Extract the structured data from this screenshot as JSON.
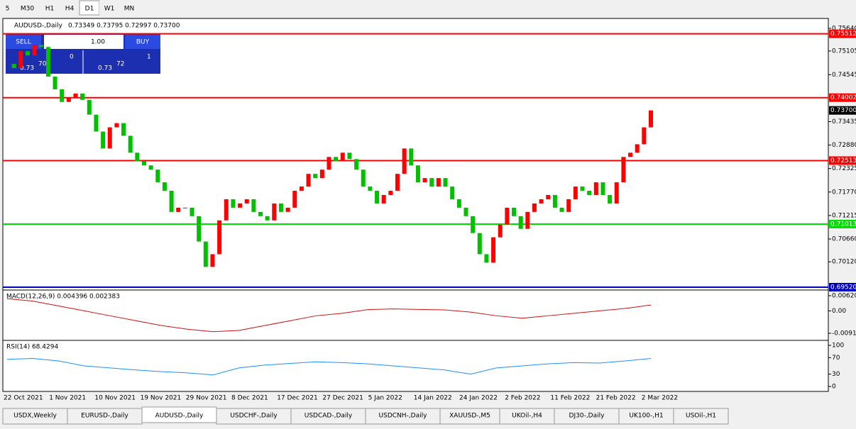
{
  "toolbar": {
    "timeframes": [
      "5",
      "M30",
      "H1",
      "H4",
      "D1",
      "W1",
      "MN"
    ],
    "active": "D1"
  },
  "header": {
    "symbol": "AUDUSD-,Daily",
    "ohlc": "0.73349 0.73795 0.72997 0.73700"
  },
  "trade_panel": {
    "sell": "SELL",
    "buy": "BUY",
    "volume": "1.00",
    "bid_big": "0.73",
    "bid_pips": "70",
    "bid_frac": "0",
    "ask_big": "0.73",
    "ask_pips": "72",
    "ask_frac": "1"
  },
  "chart_data": {
    "type": "candlestick",
    "up_color": "#ff0000",
    "down_color": "#00c000",
    "closes": [
      0.748,
      0.747,
      0.751,
      0.75,
      0.7525,
      0.752,
      0.745,
      0.742,
      0.739,
      0.74,
      0.741,
      0.7395,
      0.736,
      0.732,
      0.728,
      0.733,
      0.734,
      0.731,
      0.727,
      0.725,
      0.724,
      0.723,
      0.72,
      0.718,
      0.713,
      0.714,
      0.714,
      0.712,
      0.706,
      0.7,
      0.703,
      0.711,
      0.716,
      0.714,
      0.715,
      0.716,
      0.713,
      0.712,
      0.711,
      0.715,
      0.713,
      0.714,
      0.718,
      0.719,
      0.722,
      0.721,
      0.723,
      0.726,
      0.725,
      0.727,
      0.7255,
      0.723,
      0.719,
      0.718,
      0.715,
      0.717,
      0.718,
      0.722,
      0.728,
      0.724,
      0.72,
      0.721,
      0.719,
      0.721,
      0.719,
      0.716,
      0.714,
      0.712,
      0.708,
      0.703,
      0.701,
      0.707,
      0.71,
      0.714,
      0.712,
      0.709,
      0.713,
      0.715,
      0.716,
      0.717,
      0.714,
      0.713,
      0.716,
      0.719,
      0.718,
      0.717,
      0.72,
      0.717,
      0.715,
      0.72,
      0.726,
      0.727,
      0.729,
      0.733,
      0.737
    ],
    "ylim": [
      0.6952,
      0.7564
    ],
    "yticks": [
      {
        "value": 0.7564,
        "label": "0.75640"
      },
      {
        "value": 0.75105,
        "label": "0.75105"
      },
      {
        "value": 0.74545,
        "label": "0.74545"
      },
      {
        "value": 0.73435,
        "label": "0.73435"
      },
      {
        "value": 0.7288,
        "label": "0.72880"
      },
      {
        "value": 0.72325,
        "label": "0.72325"
      },
      {
        "value": 0.7177,
        "label": "0.71770"
      },
      {
        "value": 0.71215,
        "label": "0.71215"
      },
      {
        "value": 0.7066,
        "label": "0.70660"
      },
      {
        "value": 0.7012,
        "label": "0.70120"
      }
    ],
    "levels": [
      {
        "value": 0.75512,
        "label": "0.75512",
        "color": "#ff0000"
      },
      {
        "value": 0.74002,
        "label": "0.74002",
        "color": "#ff0000"
      },
      {
        "value": 0.72513,
        "label": "0.72513",
        "color": "#ff0000"
      },
      {
        "value": 0.71013,
        "label": "0.71013",
        "color": "#00e000"
      },
      {
        "value": 0.6952,
        "label": "0.69520",
        "color": "#0000c0"
      }
    ],
    "current": {
      "value": 0.737,
      "label": "0.73700"
    },
    "x_labels": [
      "22 Oct 2021",
      "1 Nov 2021",
      "10 Nov 2021",
      "19 Nov 2021",
      "29 Nov 2021",
      "8 Dec 2021",
      "17 Dec 2021",
      "27 Dec 2021",
      "5 Jan 2022",
      "14 Jan 2022",
      "24 Jan 2022",
      "2 Feb 2022",
      "11 Feb 2022",
      "21 Feb 2022",
      "2 Mar 2022"
    ],
    "macd": {
      "label": "MACD(12,26,9) 0.004396 0.002383",
      "ylim": [
        -0.00915,
        0.0062
      ],
      "yticks": [
        {
          "value": 0.0062,
          "label": "0.00620"
        },
        {
          "value": 0,
          "label": "0.00"
        },
        {
          "value": -0.00915,
          "label": "-0.00915"
        }
      ],
      "signal": [
        0.005,
        0.004,
        0.002,
        0,
        -0.002,
        -0.004,
        -0.006,
        -0.0075,
        -0.0085,
        -0.008,
        -0.006,
        -0.004,
        -0.002,
        -0.001,
        0.0005,
        0.0008,
        0.0006,
        0.0004,
        -0.0005,
        -0.002,
        -0.003,
        -0.002,
        -0.001,
        0,
        0.001,
        0.0024
      ]
    },
    "rsi": {
      "label": "RSI(14) 68.4294",
      "ylim": [
        0,
        100
      ],
      "yticks": [
        100,
        70,
        30,
        0
      ],
      "values": [
        66,
        68,
        62,
        50,
        45,
        40,
        36,
        33,
        28,
        45,
        52,
        56,
        60,
        58,
        55,
        50,
        45,
        40,
        30,
        45,
        50,
        55,
        58,
        57,
        62,
        68
      ]
    }
  },
  "tabs": [
    "USDX,Weekly",
    "EURUSD-,Daily",
    "AUDUSD-,Daily",
    "USDCHF-,Daily",
    "USDCAD-,Daily",
    "USDCNH-,Daily",
    "XAUUSD-,M5",
    "UKOil-,H4",
    "DJ30-,Daily",
    "UK100-,H1",
    "USOil-,H1"
  ],
  "active_tab": "AUDUSD-,Daily"
}
